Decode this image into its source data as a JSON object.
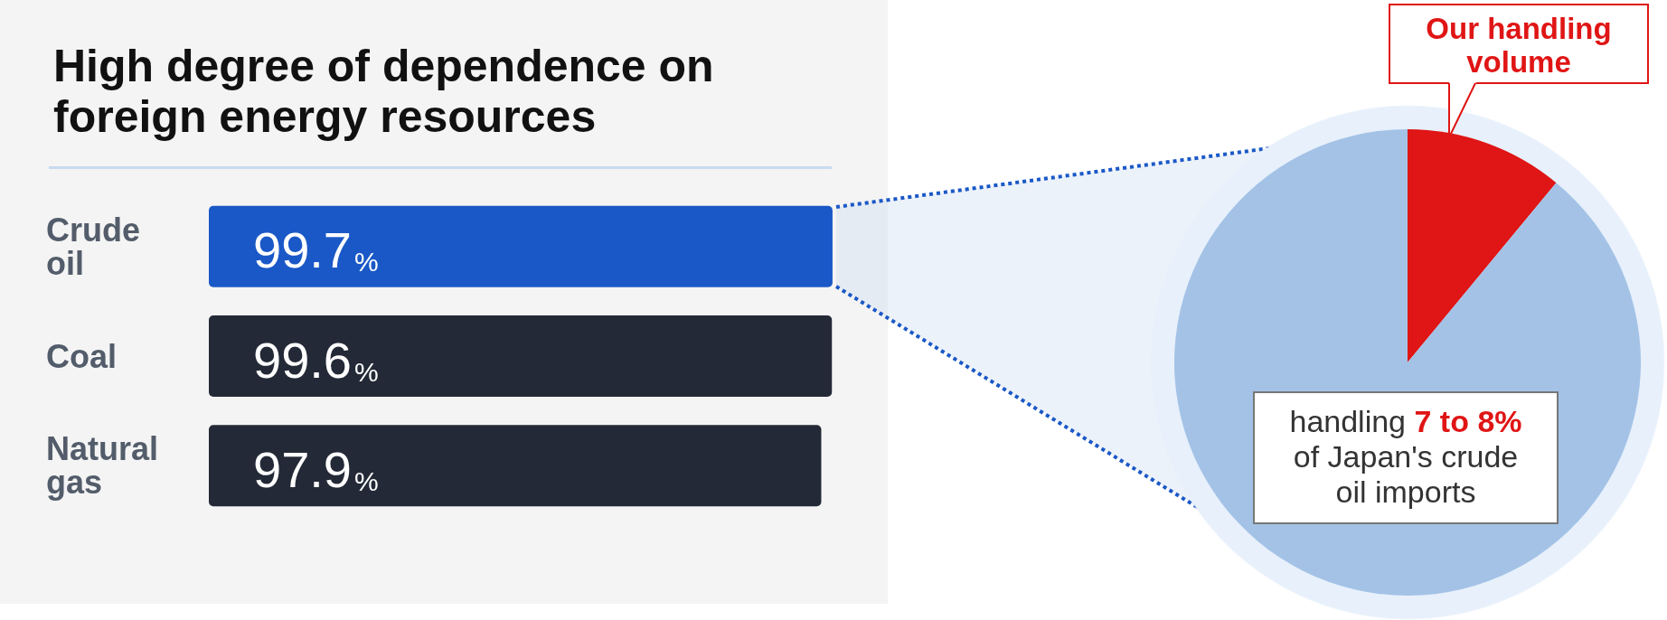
{
  "chart_data": [
    {
      "type": "bar",
      "title": "High degree of dependence on foreign energy resources",
      "orientation": "horizontal",
      "categories": [
        "Crude oil",
        "Coal",
        "Natural gas"
      ],
      "values": [
        99.7,
        99.6,
        97.9
      ],
      "colors": [
        "#1a58c7",
        "#232936",
        "#232936"
      ],
      "value_labels": [
        "99.7%",
        "99.6%",
        "97.9%"
      ],
      "xlim": [
        0,
        100
      ],
      "tick_labels": "y"
    },
    {
      "type": "pie",
      "categories": [
        "Our handling volume",
        null
      ],
      "values": [
        11,
        89
      ],
      "colors": [
        "#e01515",
        "#a3c2e6"
      ],
      "annotations": [
        "handling 7 to 8% of Japan's crude oil imports"
      ]
    }
  ]
}
